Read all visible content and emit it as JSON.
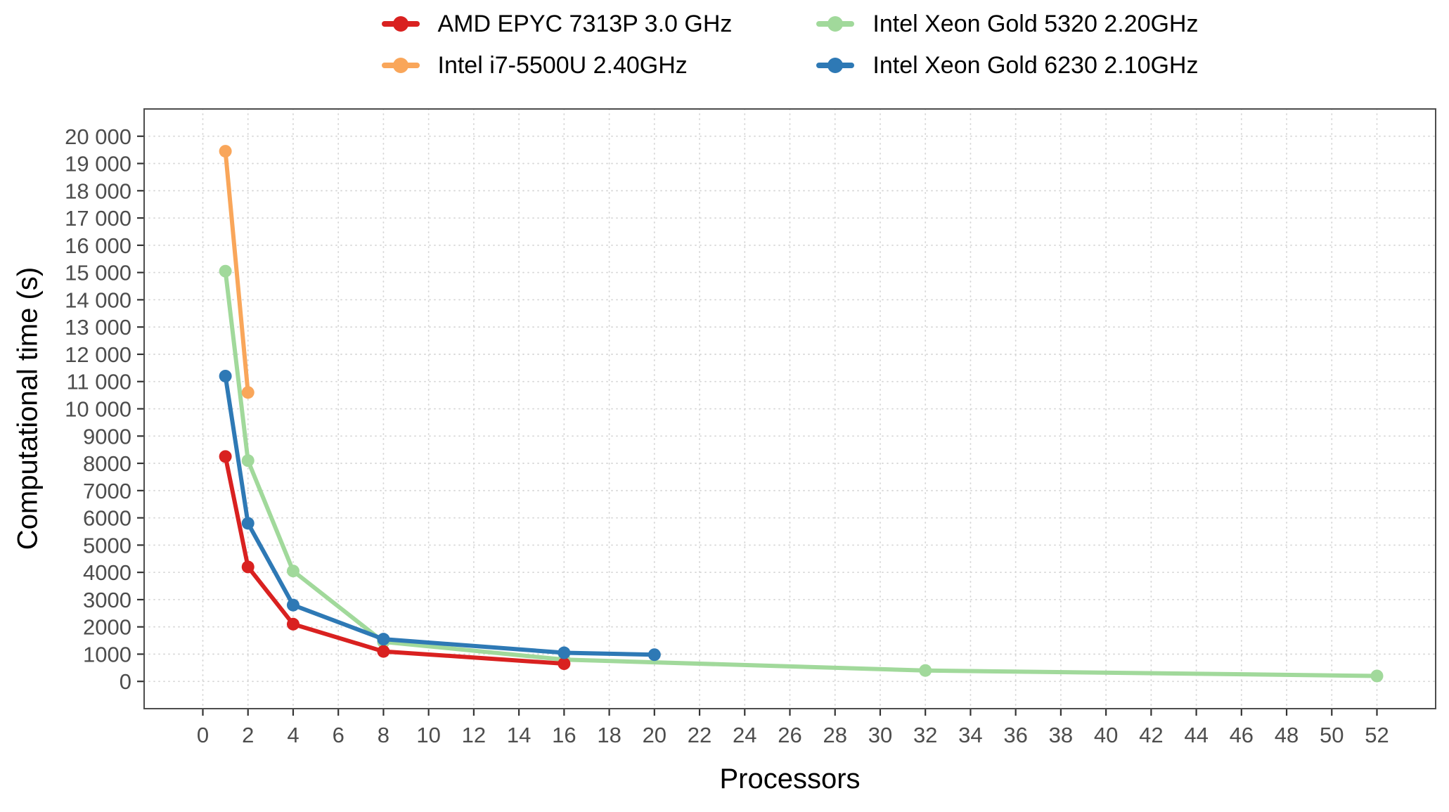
{
  "chart_data": {
    "type": "line",
    "title": "",
    "xlabel": "Processors",
    "ylabel": "Computational time (s)",
    "xlim": [
      0,
      52
    ],
    "ylim": [
      0,
      20000
    ],
    "grid": "dotted-major",
    "legend_position": "top",
    "colors": {
      "panel_background": "#FFFFFF",
      "grid": "#D6D6D6",
      "panel_border": "#4D4D4D",
      "tick": "#333333",
      "tick_label": "#4D4D4D",
      "axis_title": "#000000"
    },
    "x_ticks": {
      "values": [
        0,
        2,
        4,
        6,
        8,
        10,
        12,
        14,
        16,
        18,
        20,
        22,
        24,
        26,
        28,
        30,
        32,
        34,
        36,
        38,
        40,
        42,
        44,
        46,
        48,
        50,
        52
      ],
      "labels": [
        "0",
        "2",
        "4",
        "6",
        "8",
        "10",
        "12",
        "14",
        "16",
        "18",
        "20",
        "22",
        "24",
        "26",
        "28",
        "30",
        "32",
        "34",
        "36",
        "38",
        "40",
        "42",
        "44",
        "46",
        "48",
        "50",
        "52"
      ]
    },
    "y_ticks": {
      "values": [
        0,
        1000,
        2000,
        3000,
        4000,
        5000,
        6000,
        7000,
        8000,
        9000,
        10000,
        11000,
        12000,
        13000,
        14000,
        15000,
        16000,
        17000,
        18000,
        19000,
        20000
      ],
      "labels": [
        "0",
        "1000",
        "2000",
        "3000",
        "4000",
        "5000",
        "6000",
        "7000",
        "8000",
        "9000",
        "10 000",
        "11 000",
        "12 000",
        "13 000",
        "14 000",
        "15 000",
        "16 000",
        "17 000",
        "18 000",
        "19 000",
        "20 000"
      ]
    },
    "series": [
      {
        "id": "amd-epyc-7313p",
        "name": "AMD EPYC 7313P 3.0 GHz",
        "color": "#D92120",
        "points": [
          [
            1,
            8250
          ],
          [
            2,
            4200
          ],
          [
            4,
            2100
          ],
          [
            8,
            1100
          ],
          [
            16,
            650
          ]
        ]
      },
      {
        "id": "intel-i7-5500u",
        "name": "Intel i7-5500U 2.40GHz",
        "color": "#F9A65A",
        "points": [
          [
            1,
            19450
          ],
          [
            2,
            10600
          ]
        ]
      },
      {
        "id": "intel-xeon-gold-5320",
        "name": "Intel Xeon Gold 5320 2.20GHz",
        "color": "#A1D99B",
        "points": [
          [
            1,
            15050
          ],
          [
            2,
            8100
          ],
          [
            4,
            4050
          ],
          [
            8,
            1450
          ],
          [
            16,
            800
          ],
          [
            32,
            400
          ],
          [
            52,
            200
          ]
        ]
      },
      {
        "id": "intel-xeon-gold-6230",
        "name": "Intel Xeon Gold 6230 2.10GHz",
        "color": "#2E79B5",
        "points": [
          [
            1,
            11200
          ],
          [
            2,
            5800
          ],
          [
            4,
            2800
          ],
          [
            8,
            1550
          ],
          [
            16,
            1050
          ],
          [
            20,
            980
          ]
        ]
      }
    ],
    "legend_order": [
      0,
      2,
      1,
      3
    ],
    "draw_order": [
      2,
      1,
      0,
      3
    ]
  }
}
